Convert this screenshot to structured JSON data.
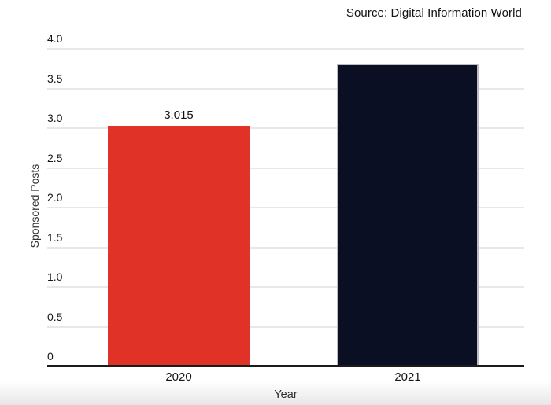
{
  "chart": {
    "source": "Source: Digital Information World",
    "xlabel": "Year",
    "ylabel": "Sponsored Posts"
  },
  "chart_data": {
    "type": "bar",
    "title": "Source: Digital Information World",
    "xlabel": "Year",
    "ylabel": "Sponsored Posts",
    "categories": [
      "2020",
      "2021"
    ],
    "values": [
      3.015,
      3.8
    ],
    "value_labels": [
      "3.015",
      ""
    ],
    "bar_colors": [
      "#e03227",
      "#0a0f23"
    ],
    "bar_outlined": [
      false,
      true
    ],
    "ylim": [
      0,
      4
    ],
    "yticks": [
      {
        "label": "4.0",
        "value": 4.0
      },
      {
        "label": "3.5",
        "value": 3.5
      },
      {
        "label": "3.0",
        "value": 3.0
      },
      {
        "label": "2.5",
        "value": 2.5
      },
      {
        "label": "2.0",
        "value": 2.0
      },
      {
        "label": "1.5",
        "value": 1.5
      },
      {
        "label": "1.0",
        "value": 1.0
      },
      {
        "label": "0.5",
        "value": 0.5
      },
      {
        "label": "0",
        "value": 0
      }
    ],
    "grid": true,
    "legend": "none",
    "gridline_color": "#e8e8e8",
    "axis_color": "#1b1b1b",
    "background": "#ffffff"
  }
}
